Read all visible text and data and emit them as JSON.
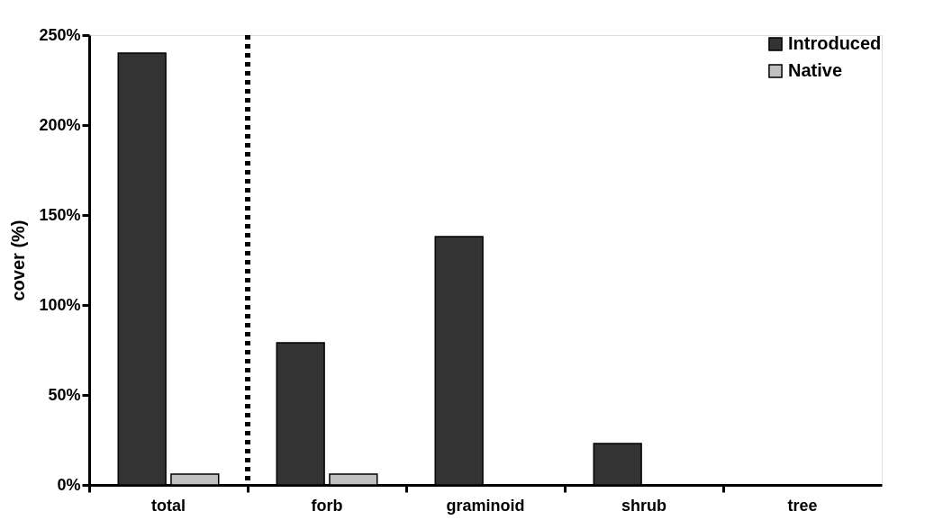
{
  "chart_data": {
    "type": "bar",
    "ylabel": "cover (%)",
    "categories": [
      "total",
      "forb",
      "graminoid",
      "shrub",
      "tree"
    ],
    "series": [
      {
        "name": "Introduced",
        "color": "#333333",
        "values": [
          240,
          79,
          138,
          23,
          null
        ]
      },
      {
        "name": "Native",
        "color": "#c0c0c0",
        "values": [
          6,
          6,
          null,
          null,
          null
        ]
      }
    ],
    "ylim": [
      0,
      250
    ],
    "yticks": [
      {
        "value": 0,
        "label": "0%"
      },
      {
        "value": 50,
        "label": "50%"
      },
      {
        "value": 100,
        "label": "100%"
      },
      {
        "value": 150,
        "label": "150%"
      },
      {
        "value": 200,
        "label": "200%"
      },
      {
        "value": 250,
        "label": "250%"
      }
    ],
    "grid": false,
    "legend": "top right"
  }
}
